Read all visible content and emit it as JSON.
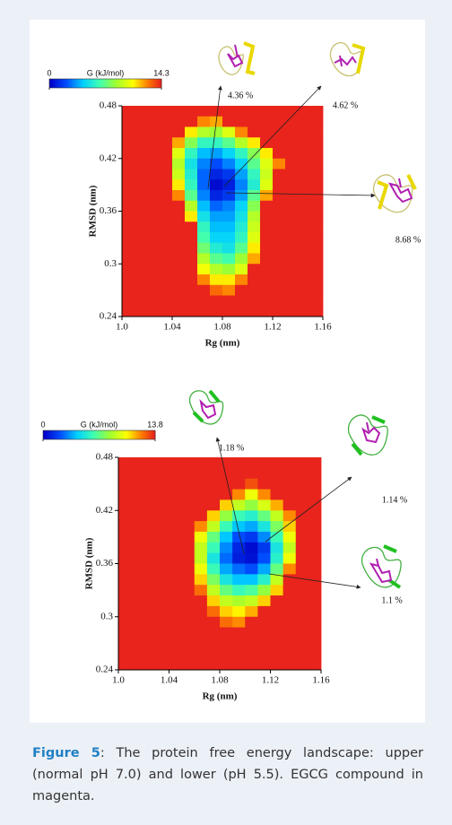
{
  "chart_data": [
    {
      "type": "heatmap",
      "colormap": "jet",
      "xlabel": "Rg (nm)",
      "ylabel": "RMSD (nm)",
      "xlim": [
        1.0,
        1.16
      ],
      "ylim": [
        0.24,
        0.48
      ],
      "xticks": [
        {
          "value": 1.0,
          "label": "1.0"
        },
        1.04,
        1.08,
        1.12,
        1.16
      ],
      "yticks": [
        0.24,
        0.3,
        0.36,
        0.42,
        0.48
      ],
      "colorbar": {
        "label": "G (kJ/mol)",
        "lim": [
          0,
          14.3
        ],
        "ticks": [
          0,
          14.3
        ]
      },
      "xbins": [
        1.0,
        1.01,
        1.02,
        1.03,
        1.04,
        1.05,
        1.06,
        1.07,
        1.08,
        1.09,
        1.1,
        1.11,
        1.12,
        1.13,
        1.14,
        1.15,
        1.16
      ],
      "ybins": [
        0.48,
        0.468,
        0.456,
        0.444,
        0.432,
        0.42,
        0.408,
        0.396,
        0.384,
        0.372,
        0.36,
        0.348,
        0.336,
        0.324,
        0.312,
        0.3,
        0.288,
        0.276,
        0.264,
        0.252,
        0.24
      ],
      "z": [
        [
          14.3,
          14.3,
          14.3,
          14.3,
          14.3,
          14.3,
          14.3,
          14.3,
          14.3,
          14.3,
          14.3,
          14.3,
          14.3,
          14.3,
          14.3,
          14.3
        ],
        [
          14.3,
          14.3,
          14.3,
          14.3,
          14.3,
          14.3,
          12.5,
          12,
          14.3,
          14.3,
          14.3,
          14.3,
          14.3,
          14.3,
          14.3,
          14.3
        ],
        [
          14.3,
          14.3,
          14.3,
          14.3,
          14.3,
          11,
          9,
          8.5,
          10,
          12.5,
          14.3,
          14.3,
          14.3,
          14.3,
          14.3,
          14.3
        ],
        [
          14.3,
          14.3,
          14.3,
          14.3,
          12,
          8,
          6,
          6,
          7,
          9,
          11,
          14.3,
          14.3,
          14.3,
          14.3,
          14.3
        ],
        [
          14.3,
          14.3,
          14.3,
          14.3,
          10,
          6,
          4,
          3.5,
          4.5,
          6,
          8,
          11,
          14.3,
          14.3,
          14.3,
          14.3
        ],
        [
          14.3,
          14.3,
          14.3,
          14.3,
          9,
          5,
          3,
          2,
          3,
          4.5,
          7,
          10,
          12.5,
          14.3,
          14.3,
          14.3
        ],
        [
          14.3,
          14.3,
          14.3,
          14.3,
          9.5,
          5.5,
          2.5,
          1,
          1.5,
          3.5,
          6,
          9.5,
          14.3,
          14.3,
          14.3,
          14.3
        ],
        [
          14.3,
          14.3,
          14.3,
          14.3,
          11,
          6,
          2.5,
          0.3,
          0.8,
          3,
          5.5,
          10,
          14.3,
          14.3,
          14.3,
          14.3
        ],
        [
          14.3,
          14.3,
          14.3,
          14.3,
          12.5,
          7,
          3,
          1,
          1.5,
          3.5,
          7,
          12,
          14.3,
          14.3,
          14.3,
          14.3
        ],
        [
          14.3,
          14.3,
          14.3,
          14.3,
          14.3,
          9,
          4,
          2.5,
          3,
          4.5,
          8,
          14.3,
          14.3,
          14.3,
          14.3,
          14.3
        ],
        [
          14.3,
          14.3,
          14.3,
          14.3,
          14.3,
          11,
          5,
          3.5,
          3.5,
          5,
          9,
          14.3,
          14.3,
          14.3,
          14.3,
          14.3
        ],
        [
          14.3,
          14.3,
          14.3,
          14.3,
          14.3,
          14.3,
          6,
          4,
          4,
          5.5,
          9.5,
          14.3,
          14.3,
          14.3,
          14.3,
          14.3
        ],
        [
          14.3,
          14.3,
          14.3,
          14.3,
          14.3,
          14.3,
          6.5,
          4.5,
          4.5,
          6,
          10,
          14.3,
          14.3,
          14.3,
          14.3,
          14.3
        ],
        [
          14.3,
          14.3,
          14.3,
          14.3,
          14.3,
          14.3,
          7.5,
          5.5,
          5,
          7,
          11,
          14.3,
          14.3,
          14.3,
          14.3,
          14.3
        ],
        [
          14.3,
          14.3,
          14.3,
          14.3,
          14.3,
          14.3,
          9,
          7,
          6.5,
          8.5,
          12,
          14.3,
          14.3,
          14.3,
          14.3,
          14.3
        ],
        [
          14.3,
          14.3,
          14.3,
          14.3,
          14.3,
          14.3,
          10.5,
          9,
          8.5,
          10,
          14.3,
          14.3,
          14.3,
          14.3,
          14.3,
          14.3
        ],
        [
          14.3,
          14.3,
          14.3,
          14.3,
          14.3,
          14.3,
          12.5,
          11,
          11,
          12.5,
          14.3,
          14.3,
          14.3,
          14.3,
          14.3,
          14.3
        ],
        [
          14.3,
          14.3,
          14.3,
          14.3,
          14.3,
          14.3,
          14.3,
          13,
          12.5,
          14.3,
          14.3,
          14.3,
          14.3,
          14.3,
          14.3,
          14.3
        ],
        [
          14.3,
          14.3,
          14.3,
          14.3,
          14.3,
          14.3,
          14.3,
          14.3,
          14.3,
          14.3,
          14.3,
          14.3,
          14.3,
          14.3,
          14.3,
          14.3
        ],
        [
          14.3,
          14.3,
          14.3,
          14.3,
          14.3,
          14.3,
          14.3,
          14.3,
          14.3,
          14.3,
          14.3,
          14.3,
          14.3,
          14.3,
          14.3,
          14.3
        ]
      ],
      "annotations": [
        "4.36 %",
        "4.62 %",
        "8.68 %"
      ]
    },
    {
      "type": "heatmap",
      "colormap": "jet",
      "xlabel": "Rg (nm)",
      "ylabel": "RMSD (nm)",
      "xlim": [
        1.0,
        1.16
      ],
      "ylim": [
        0.24,
        0.48
      ],
      "xticks": [
        {
          "value": 1.0,
          "label": "1.0"
        },
        1.04,
        1.08,
        1.12,
        1.16
      ],
      "yticks": [
        0.24,
        0.3,
        0.36,
        0.42,
        0.48
      ],
      "colorbar": {
        "label": "G (kJ/mol)",
        "lim": [
          0,
          13.8
        ],
        "ticks": [
          0,
          13.8
        ]
      },
      "xbins": [
        1.0,
        1.01,
        1.02,
        1.03,
        1.04,
        1.05,
        1.06,
        1.07,
        1.08,
        1.09,
        1.1,
        1.11,
        1.12,
        1.13,
        1.14,
        1.15,
        1.16
      ],
      "ybins": [
        0.48,
        0.468,
        0.456,
        0.444,
        0.432,
        0.42,
        0.408,
        0.396,
        0.384,
        0.372,
        0.36,
        0.348,
        0.336,
        0.324,
        0.312,
        0.3,
        0.288,
        0.276,
        0.264,
        0.252,
        0.24
      ],
      "z": [
        [
          13.8,
          13.8,
          13.8,
          13.8,
          13.8,
          13.8,
          13.8,
          13.8,
          13.8,
          13.8,
          13.8,
          13.8,
          13.8,
          13.8,
          13.8,
          13.8
        ],
        [
          13.8,
          13.8,
          13.8,
          13.8,
          13.8,
          13.8,
          13.8,
          13.8,
          13.8,
          13.8,
          13.8,
          13.8,
          13.8,
          13.8,
          13.8,
          13.8
        ],
        [
          13.8,
          13.8,
          13.8,
          13.8,
          13.8,
          13.8,
          13.8,
          13.8,
          13.8,
          13.8,
          13,
          13.8,
          13.8,
          13.8,
          13.8,
          13.8
        ],
        [
          13.8,
          13.8,
          13.8,
          13.8,
          13.8,
          13.8,
          13.8,
          13.8,
          13.8,
          12,
          10,
          12,
          13.8,
          13.8,
          13.8,
          13.8
        ],
        [
          13.8,
          13.8,
          13.8,
          13.8,
          13.8,
          13.8,
          13.8,
          13.8,
          11,
          9,
          8,
          9.5,
          11.5,
          13.8,
          13.8,
          13.8
        ],
        [
          13.8,
          13.8,
          13.8,
          13.8,
          13.8,
          13.8,
          13.8,
          11,
          8,
          6,
          5.5,
          7,
          9,
          12,
          13.8,
          13.8
        ],
        [
          13.8,
          13.8,
          13.8,
          13.8,
          13.8,
          13.8,
          12,
          9,
          6,
          4,
          3.5,
          5,
          7.5,
          11,
          13.8,
          13.8
        ],
        [
          13.8,
          13.8,
          13.8,
          13.8,
          13.8,
          13.8,
          10,
          7,
          4,
          2,
          1.5,
          3,
          6,
          10,
          13.8,
          13.8
        ],
        [
          13.8,
          13.8,
          13.8,
          13.8,
          13.8,
          13.8,
          9,
          6,
          3,
          1,
          0.3,
          1.5,
          5,
          9,
          13.8,
          13.8
        ],
        [
          13.8,
          13.8,
          13.8,
          13.8,
          13.8,
          13.8,
          9,
          5,
          2.5,
          0.8,
          0.5,
          2,
          5.5,
          10,
          13.8,
          13.8
        ],
        [
          13.8,
          13.8,
          13.8,
          13.8,
          13.8,
          13.8,
          10,
          6,
          3.5,
          2.5,
          2,
          3.5,
          7,
          12,
          13.8,
          13.8
        ],
        [
          13.8,
          13.8,
          13.8,
          13.8,
          13.8,
          13.8,
          11,
          7.5,
          5,
          4,
          4,
          5.5,
          9,
          13.8,
          13.8,
          13.8
        ],
        [
          13.8,
          13.8,
          13.8,
          13.8,
          13.8,
          13.8,
          12.5,
          9,
          7,
          6,
          6.5,
          8,
          11,
          13.8,
          13.8,
          13.8
        ],
        [
          13.8,
          13.8,
          13.8,
          13.8,
          13.8,
          13.8,
          13.8,
          11,
          9,
          8.5,
          9,
          11,
          13.8,
          13.8,
          13.8,
          13.8
        ],
        [
          13.8,
          13.8,
          13.8,
          13.8,
          13.8,
          13.8,
          13.8,
          12.5,
          11,
          10.5,
          11.5,
          13.8,
          13.8,
          13.8,
          13.8,
          13.8
        ],
        [
          13.8,
          13.8,
          13.8,
          13.8,
          13.8,
          13.8,
          13.8,
          13.8,
          12.5,
          12,
          13.8,
          13.8,
          13.8,
          13.8,
          13.8,
          13.8
        ],
        [
          13.8,
          13.8,
          13.8,
          13.8,
          13.8,
          13.8,
          13.8,
          13.8,
          13.8,
          13.8,
          13.8,
          13.8,
          13.8,
          13.8,
          13.8,
          13.8
        ],
        [
          13.8,
          13.8,
          13.8,
          13.8,
          13.8,
          13.8,
          13.8,
          13.8,
          13.8,
          13.8,
          13.8,
          13.8,
          13.8,
          13.8,
          13.8,
          13.8
        ],
        [
          13.8,
          13.8,
          13.8,
          13.8,
          13.8,
          13.8,
          13.8,
          13.8,
          13.8,
          13.8,
          13.8,
          13.8,
          13.8,
          13.8,
          13.8,
          13.8
        ],
        [
          13.8,
          13.8,
          13.8,
          13.8,
          13.8,
          13.8,
          13.8,
          13.8,
          13.8,
          13.8,
          13.8,
          13.8,
          13.8,
          13.8,
          13.8,
          13.8
        ]
      ],
      "annotations": [
        "1.18 %",
        "1.14 %",
        "1.1 %"
      ]
    }
  ],
  "caption": {
    "label": "Figure 5",
    "text": ": The protein free energy landscape: upper (normal pH 7.0) and lower (pH 5.5). EGCG compound in magenta."
  }
}
